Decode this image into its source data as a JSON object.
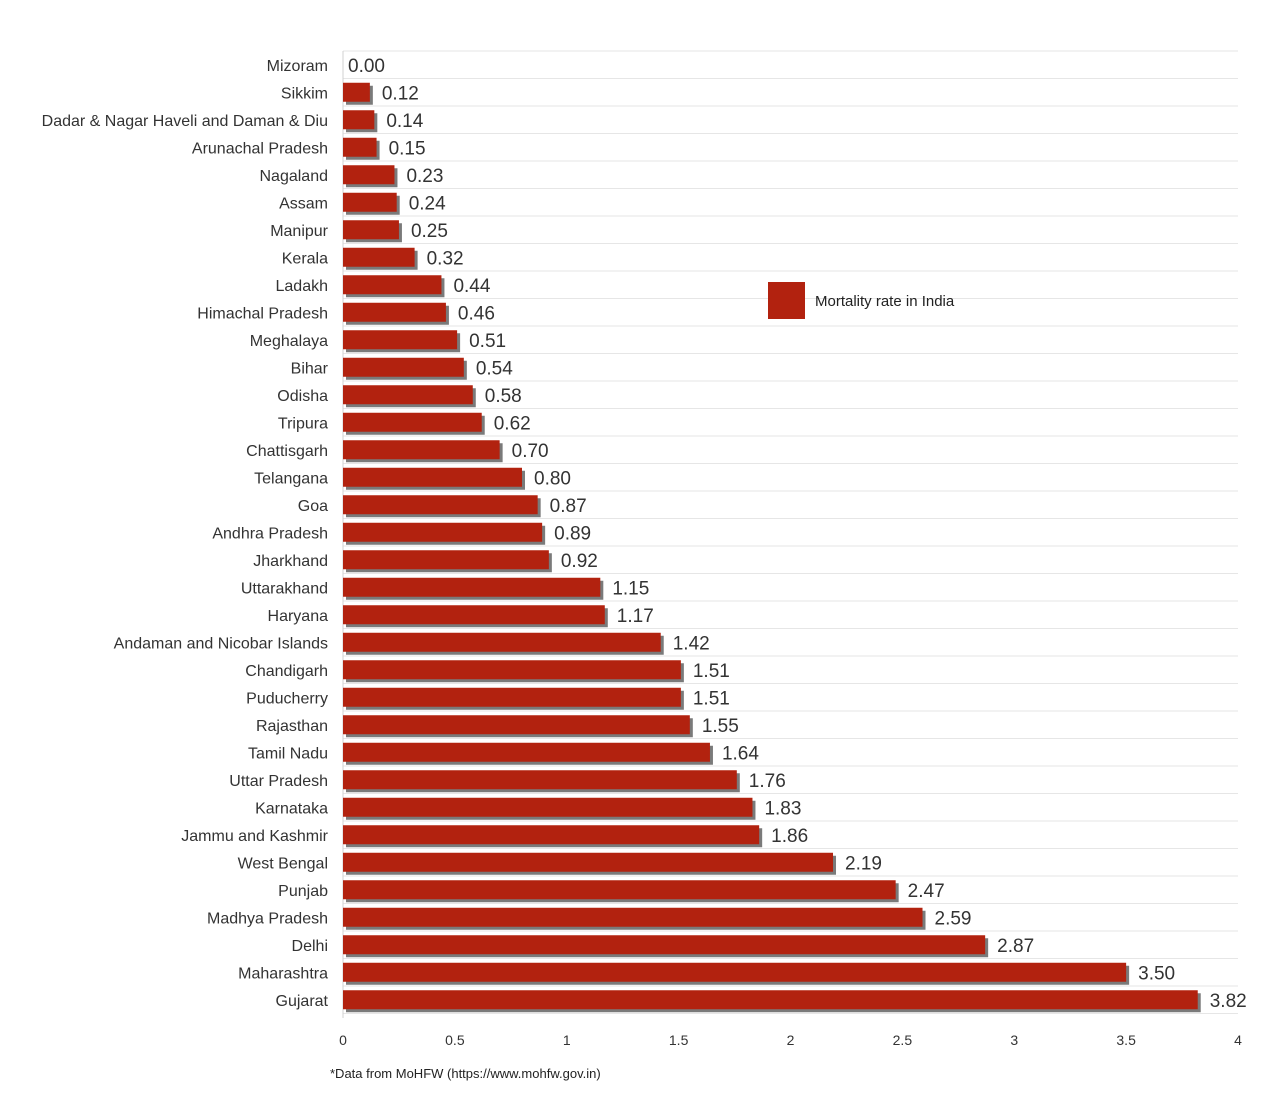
{
  "chart_data": {
    "type": "bar",
    "orientation": "horizontal",
    "title": "",
    "xlabel": "",
    "ylabel": "",
    "xlim": [
      0,
      4
    ],
    "xticks": [
      0,
      0.5,
      1,
      1.5,
      2,
      2.5,
      3,
      3.5,
      4
    ],
    "xtick_labels": [
      "0",
      "0.5",
      "1",
      "1.5",
      "2",
      "2.5",
      "3",
      "3.5",
      "4"
    ],
    "grid": true,
    "legend_position": "top-right",
    "categories": [
      "Mizoram",
      "Sikkim",
      "Dadar & Nagar Haveli and Daman & Diu",
      "Arunachal Pradesh",
      "Nagaland",
      "Assam",
      "Manipur",
      "Kerala",
      "Ladakh",
      "Himachal Pradesh",
      "Meghalaya",
      "Bihar",
      "Odisha",
      "Tripura",
      "Chattisgarh",
      "Telangana",
      "Goa",
      "Andhra Pradesh",
      "Jharkhand",
      "Uttarakhand",
      "Haryana",
      "Andaman and Nicobar Islands",
      "Chandigarh",
      "Puducherry",
      "Rajasthan",
      "Tamil Nadu",
      "Uttar Pradesh",
      "Karnataka",
      "Jammu and Kashmir",
      "West Bengal",
      "Punjab",
      "Madhya Pradesh",
      "Delhi",
      "Maharashtra",
      "Gujarat"
    ],
    "series": [
      {
        "name": "Mortality rate in India",
        "color": "#b2220f",
        "values": [
          0.0,
          0.12,
          0.14,
          0.15,
          0.23,
          0.24,
          0.25,
          0.32,
          0.44,
          0.46,
          0.51,
          0.54,
          0.58,
          0.62,
          0.7,
          0.8,
          0.87,
          0.89,
          0.92,
          1.15,
          1.17,
          1.42,
          1.51,
          1.51,
          1.55,
          1.64,
          1.76,
          1.83,
          1.86,
          2.19,
          2.47,
          2.59,
          2.87,
          3.5,
          3.82
        ],
        "value_labels": [
          "0.00",
          "0.12",
          "0.14",
          "0.15",
          "0.23",
          "0.24",
          "0.25",
          "0.32",
          "0.44",
          "0.46",
          "0.51",
          "0.54",
          "0.58",
          "0.62",
          "0.70",
          "0.80",
          "0.87",
          "0.89",
          "0.92",
          "1.15",
          "1.17",
          "1.42",
          "1.51",
          "1.51",
          "1.55",
          "1.64",
          "1.76",
          "1.83",
          "1.86",
          "2.19",
          "2.47",
          "2.59",
          "2.87",
          "3.50",
          "3.82"
        ]
      }
    ],
    "colors": {
      "bar": "#b2220f",
      "shadow": "#7a7a7a",
      "grid": "#e6e6e6"
    }
  },
  "source_note": "*Data from MoHFW (https://www.mohfw.gov.in)"
}
